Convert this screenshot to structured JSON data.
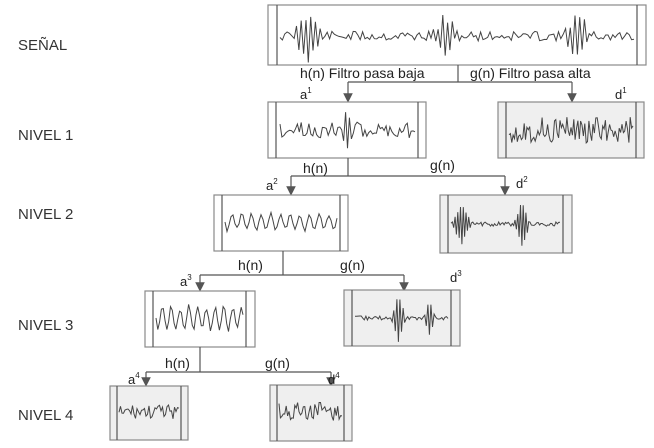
{
  "levels": {
    "senal": "SEÑAL",
    "n1": "NIVEL 1",
    "n2": "NIVEL 2",
    "n3": "NIVEL 3",
    "n4": "NIVEL 4"
  },
  "filters": {
    "low_full": "h(n) Filtro pasa baja",
    "high_full": "g(n) Filtro pasa alta",
    "low": "h(n)",
    "high": "g(n)"
  },
  "coeffs": {
    "a": "a",
    "d": "d",
    "s1": "1",
    "s2": "2",
    "s3": "3",
    "s4": "4"
  },
  "colors": {
    "detail_fill": "#efefef",
    "approx_fill": "#ffffff",
    "stroke": "#8a8a8a"
  }
}
